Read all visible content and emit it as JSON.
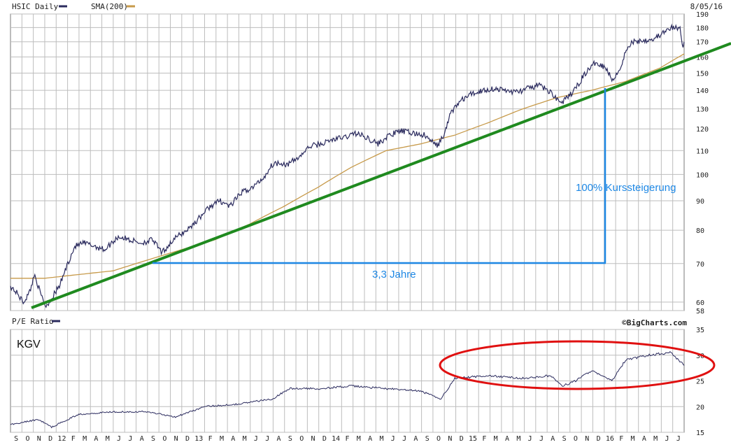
{
  "colors": {
    "price": "#2b2b5e",
    "sma": "#c79a4a",
    "trendline": "#1f8a1f",
    "annotation": "#1e88e5",
    "ellipse": "#e01010",
    "grid": "#bdbdbd",
    "frame": "#7a7a7a"
  },
  "header": {
    "symbol_label": "HSIC Daily",
    "sma_label": "SMA(200)",
    "date": "8/05/16"
  },
  "lower_header": {
    "pe_label": "P/E Ratio",
    "source": "©BigCharts.com"
  },
  "annotations": {
    "price_gain": "100% Kurssteigerung",
    "duration": "3,3 Jahre",
    "kgv": "KGV"
  },
  "x_axis": {
    "labels": [
      "S",
      "O",
      "N",
      "D",
      "12",
      "F",
      "M",
      "A",
      "M",
      "J",
      "J",
      "A",
      "S",
      "O",
      "N",
      "D",
      "13",
      "F",
      "M",
      "A",
      "M",
      "J",
      "J",
      "A",
      "S",
      "O",
      "N",
      "D",
      "14",
      "F",
      "M",
      "A",
      "M",
      "J",
      "J",
      "A",
      "S",
      "O",
      "N",
      "D",
      "15",
      "F",
      "M",
      "A",
      "M",
      "J",
      "J",
      "A",
      "S",
      "O",
      "N",
      "D",
      "16",
      "F",
      "M",
      "A",
      "M",
      "J",
      "J"
    ]
  },
  "chart_data": [
    {
      "type": "line",
      "scale": "log",
      "x_range": [
        "2011-09-01",
        "2016-08-05"
      ],
      "ylim": [
        58,
        190
      ],
      "yticks": [
        58,
        60,
        70,
        80,
        90,
        100,
        110,
        120,
        130,
        140,
        150,
        160,
        170,
        180,
        190
      ],
      "grid": true,
      "legend": "top-left",
      "series": [
        {
          "name": "HSIC Daily",
          "points": [
            [
              "2011-09-01",
              64
            ],
            [
              "2011-09-20",
              62
            ],
            [
              "2011-10-05",
              60
            ],
            [
              "2011-10-20",
              62
            ],
            [
              "2011-11-05",
              67
            ],
            [
              "2011-11-20",
              62
            ],
            [
              "2011-12-05",
              59
            ],
            [
              "2011-12-20",
              61
            ],
            [
              "2012-01-10",
              64
            ],
            [
              "2012-02-01",
              70
            ],
            [
              "2012-02-20",
              75
            ],
            [
              "2012-03-15",
              76
            ],
            [
              "2012-04-15",
              75
            ],
            [
              "2012-05-10",
              74
            ],
            [
              "2012-06-15",
              78
            ],
            [
              "2012-07-15",
              77
            ],
            [
              "2012-08-15",
              76
            ],
            [
              "2012-09-15",
              77
            ],
            [
              "2012-10-10",
              73
            ],
            [
              "2012-11-01",
              76
            ],
            [
              "2012-11-20",
              78
            ],
            [
              "2012-12-15",
              80
            ],
            [
              "2013-01-10",
              83
            ],
            [
              "2013-02-15",
              88
            ],
            [
              "2013-03-15",
              90
            ],
            [
              "2013-04-10",
              88
            ],
            [
              "2013-05-10",
              93
            ],
            [
              "2013-06-10",
              95
            ],
            [
              "2013-07-10",
              99
            ],
            [
              "2013-07-31",
              104
            ],
            [
              "2013-08-20",
              105
            ],
            [
              "2013-09-10",
              104
            ],
            [
              "2013-10-10",
              107
            ],
            [
              "2013-11-10",
              112
            ],
            [
              "2013-12-10",
              113
            ],
            [
              "2014-01-10",
              115
            ],
            [
              "2014-02-10",
              116
            ],
            [
              "2014-03-10",
              118
            ],
            [
              "2014-04-10",
              116
            ],
            [
              "2014-05-10",
              113
            ],
            [
              "2014-06-10",
              117
            ],
            [
              "2014-07-10",
              119
            ],
            [
              "2014-08-10",
              118
            ],
            [
              "2014-09-10",
              117
            ],
            [
              "2014-10-15",
              112
            ],
            [
              "2014-11-05",
              118
            ],
            [
              "2014-11-20",
              128
            ],
            [
              "2014-12-15",
              134
            ],
            [
              "2015-01-15",
              138
            ],
            [
              "2015-02-15",
              140
            ],
            [
              "2015-03-15",
              141
            ],
            [
              "2015-04-15",
              140
            ],
            [
              "2015-05-15",
              139
            ],
            [
              "2015-06-15",
              141
            ],
            [
              "2015-07-15",
              143
            ],
            [
              "2015-08-20",
              138
            ],
            [
              "2015-09-10",
              133
            ],
            [
              "2015-09-30",
              136
            ],
            [
              "2015-10-20",
              141
            ],
            [
              "2015-11-15",
              150
            ],
            [
              "2015-12-15",
              157
            ],
            [
              "2016-01-10",
              153
            ],
            [
              "2016-01-25",
              146
            ],
            [
              "2016-02-15",
              152
            ],
            [
              "2016-03-01",
              163
            ],
            [
              "2016-03-20",
              170
            ],
            [
              "2016-04-15",
              171
            ],
            [
              "2016-05-15",
              172
            ],
            [
              "2016-06-10",
              176
            ],
            [
              "2016-07-05",
              180
            ],
            [
              "2016-07-25",
              179
            ],
            [
              "2016-08-02",
              167
            ],
            [
              "2016-08-05",
              170
            ]
          ]
        },
        {
          "name": "SMA(200)",
          "points": [
            [
              "2011-09-01",
              66
            ],
            [
              "2011-12-01",
              66
            ],
            [
              "2012-03-01",
              67
            ],
            [
              "2012-06-01",
              68
            ],
            [
              "2012-09-01",
              71
            ],
            [
              "2012-12-01",
              74
            ],
            [
              "2013-03-01",
              77
            ],
            [
              "2013-06-01",
              82
            ],
            [
              "2013-09-01",
              88
            ],
            [
              "2013-12-01",
              95
            ],
            [
              "2014-03-01",
              103
            ],
            [
              "2014-06-01",
              110
            ],
            [
              "2014-09-01",
              113
            ],
            [
              "2014-12-01",
              117
            ],
            [
              "2015-03-01",
              123
            ],
            [
              "2015-06-01",
              130
            ],
            [
              "2015-09-01",
              136
            ],
            [
              "2015-12-01",
              140
            ],
            [
              "2016-03-01",
              145
            ],
            [
              "2016-06-01",
              153
            ],
            [
              "2016-08-05",
              162
            ]
          ]
        }
      ]
    },
    {
      "type": "line",
      "x_range": [
        "2011-09-01",
        "2016-08-05"
      ],
      "ylim": [
        15,
        35
      ],
      "yticks": [
        15,
        20,
        25,
        30,
        35
      ],
      "grid": true,
      "series": [
        {
          "name": "P/E Ratio",
          "points": [
            [
              "2011-09-01",
              16.5
            ],
            [
              "2011-11-15",
              17.5
            ],
            [
              "2011-12-20",
              16.0
            ],
            [
              "2012-03-01",
              18.5
            ],
            [
              "2012-06-01",
              19.0
            ],
            [
              "2012-09-01",
              19.0
            ],
            [
              "2012-11-15",
              18.0
            ],
            [
              "2013-02-01",
              20.0
            ],
            [
              "2013-05-01",
              20.5
            ],
            [
              "2013-08-01",
              21.5
            ],
            [
              "2013-09-15",
              23.5
            ],
            [
              "2013-12-01",
              23.5
            ],
            [
              "2014-03-01",
              24.0
            ],
            [
              "2014-06-01",
              23.5
            ],
            [
              "2014-09-01",
              23.0
            ],
            [
              "2014-10-25",
              21.5
            ],
            [
              "2014-12-01",
              25.5
            ],
            [
              "2015-03-01",
              26.0
            ],
            [
              "2015-06-01",
              25.5
            ],
            [
              "2015-08-15",
              26.0
            ],
            [
              "2015-09-15",
              24.0
            ],
            [
              "2015-10-20",
              25.0
            ],
            [
              "2015-12-01",
              27.0
            ],
            [
              "2016-01-25",
              25.0
            ],
            [
              "2016-03-01",
              29.0
            ],
            [
              "2016-05-01",
              30.0
            ],
            [
              "2016-07-01",
              30.5
            ],
            [
              "2016-08-05",
              28.0
            ]
          ]
        }
      ]
    }
  ]
}
